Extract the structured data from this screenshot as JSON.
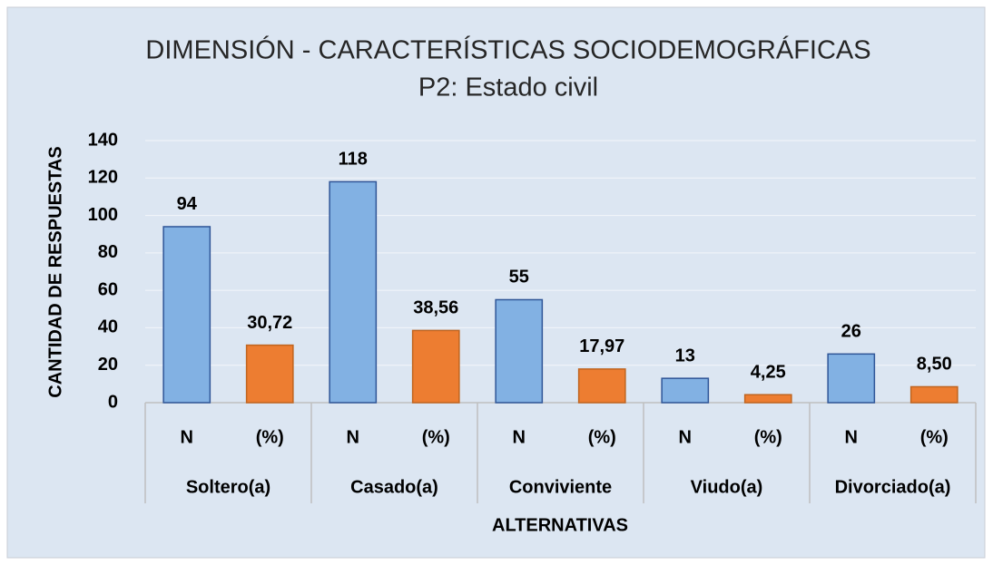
{
  "chart_data": {
    "type": "bar",
    "title": "DIMENSIÓN - CARACTERÍSTICAS SOCIODEMOGRÁFICAS",
    "subtitle": "P2: Estado civil",
    "y_label": "CANTIDAD DE RESPUESTAS",
    "x_label": "ALTERNATIVAS",
    "categories": [
      "N",
      "(%)",
      "N",
      "(%)",
      "N",
      "(%)",
      "N",
      "(%)",
      "N",
      "(%)"
    ],
    "groups": [
      "Soltero(a)",
      "Casado(a)",
      "Conviviente",
      "Viudo(a)",
      "Divorciado(a)"
    ],
    "values": [
      94,
      30.72,
      118,
      38.56,
      55,
      17.97,
      13,
      4.25,
      26,
      8.5
    ],
    "value_labels": [
      "94",
      "30,72",
      "118",
      "38,56",
      "55",
      "17,97",
      "13",
      "4,25",
      "26",
      "8,50"
    ],
    "colors": [
      "#82b1e3",
      "#ed7d31"
    ],
    "ylim": [
      0,
      140
    ],
    "yticks": [
      0,
      20,
      40,
      60,
      80,
      100,
      120,
      140
    ],
    "grid": true
  }
}
